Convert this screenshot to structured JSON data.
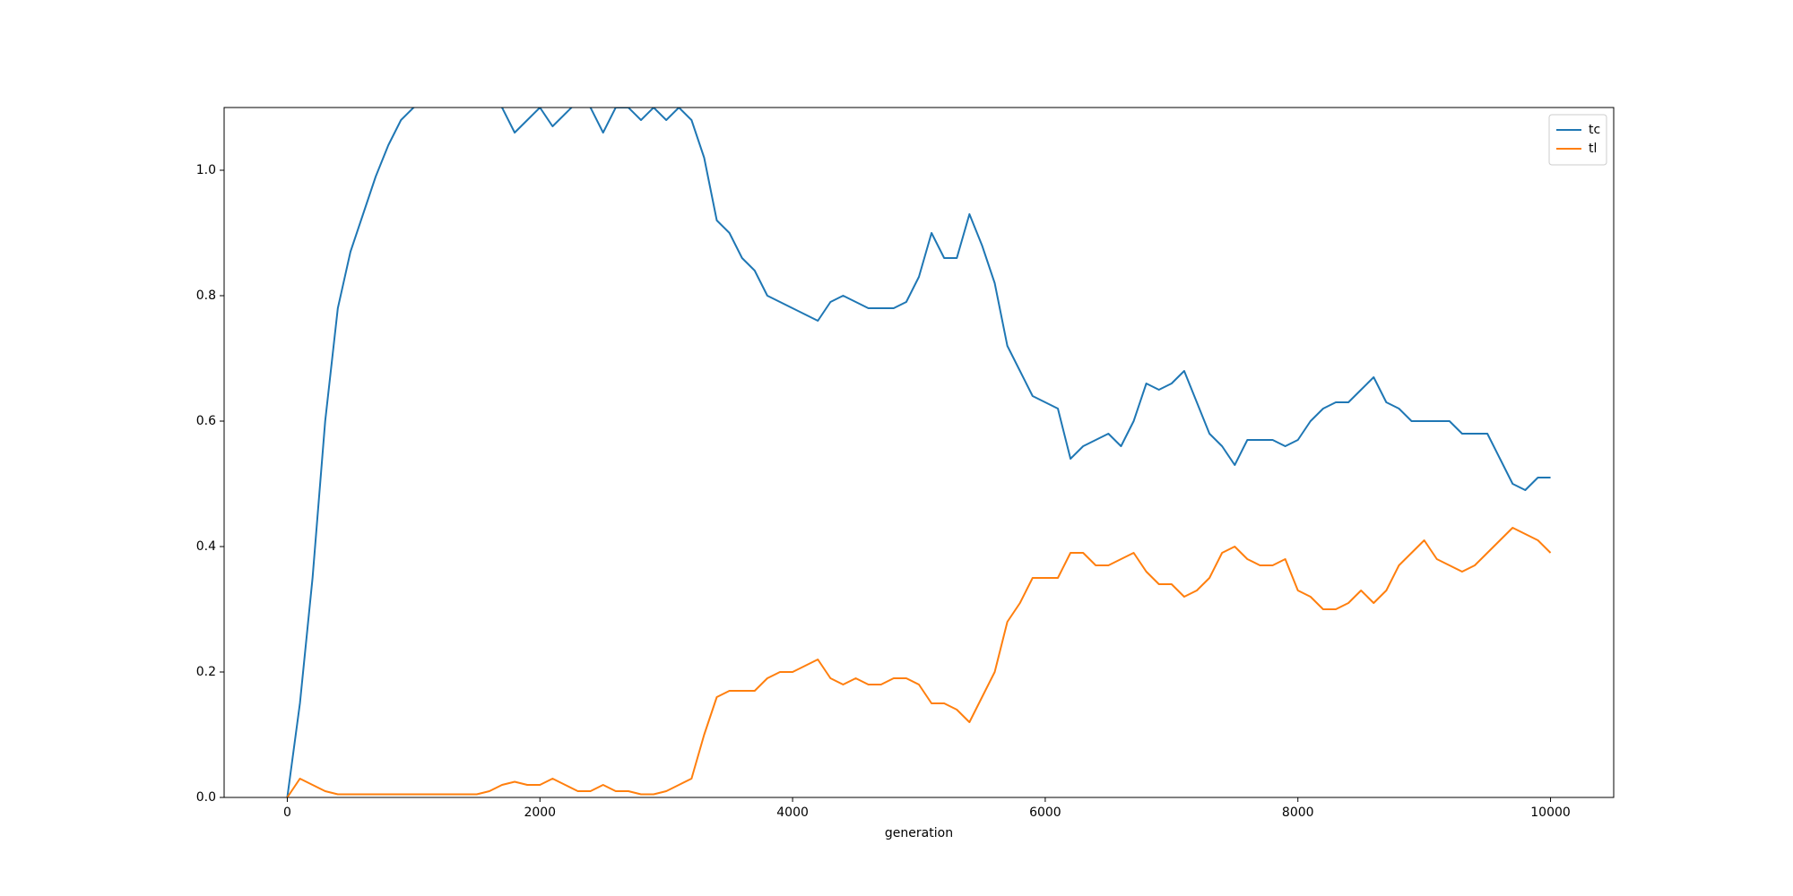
{
  "chart_data": {
    "type": "line",
    "xlabel": "generation",
    "x": [
      0,
      100,
      200,
      300,
      400,
      500,
      600,
      700,
      800,
      900,
      1000,
      1100,
      1200,
      1300,
      1400,
      1500,
      1600,
      1700,
      1800,
      1900,
      2000,
      2100,
      2200,
      2300,
      2400,
      2500,
      2600,
      2700,
      2800,
      2900,
      3000,
      3100,
      3200,
      3300,
      3400,
      3500,
      3600,
      3700,
      3800,
      3900,
      4000,
      4100,
      4200,
      4300,
      4400,
      4500,
      4600,
      4700,
      4800,
      4900,
      5000,
      5100,
      5200,
      5300,
      5400,
      5500,
      5600,
      5700,
      5800,
      5900,
      6000,
      6100,
      6200,
      6300,
      6400,
      6500,
      6600,
      6700,
      6800,
      6900,
      7000,
      7100,
      7200,
      7300,
      7400,
      7500,
      7600,
      7700,
      7800,
      7900,
      8000,
      8100,
      8200,
      8300,
      8400,
      8500,
      8600,
      8700,
      8800,
      8900,
      9000,
      9100,
      9200,
      9300,
      9400,
      9500,
      9600,
      9700,
      9800,
      9900,
      10000
    ],
    "series": [
      {
        "name": "tc",
        "color": "#1f77b4",
        "values": [
          0,
          0.15,
          0.35,
          0.6,
          0.78,
          0.87,
          0.93,
          0.99,
          1.04,
          1.08,
          1.1,
          1.11,
          1.12,
          1.13,
          1.12,
          1.12,
          1.11,
          1.1,
          1.06,
          1.08,
          1.1,
          1.07,
          1.09,
          1.11,
          1.1,
          1.06,
          1.1,
          1.1,
          1.08,
          1.1,
          1.08,
          1.1,
          1.08,
          1.02,
          0.92,
          0.9,
          0.86,
          0.84,
          0.8,
          0.79,
          0.78,
          0.77,
          0.76,
          0.79,
          0.8,
          0.79,
          0.78,
          0.78,
          0.78,
          0.79,
          0.83,
          0.9,
          0.86,
          0.86,
          0.93,
          0.88,
          0.82,
          0.72,
          0.68,
          0.64,
          0.63,
          0.62,
          0.54,
          0.56,
          0.57,
          0.58,
          0.56,
          0.6,
          0.66,
          0.65,
          0.66,
          0.68,
          0.63,
          0.58,
          0.56,
          0.53,
          0.57,
          0.57,
          0.57,
          0.56,
          0.57,
          0.6,
          0.62,
          0.63,
          0.63,
          0.65,
          0.67,
          0.63,
          0.62,
          0.6,
          0.6,
          0.6,
          0.6,
          0.58,
          0.58,
          0.58,
          0.54,
          0.5,
          0.49,
          0.51,
          0.51
        ]
      },
      {
        "name": "tl",
        "color": "#ff7f0e",
        "values": [
          0,
          0.03,
          0.02,
          0.01,
          0.005,
          0.005,
          0.005,
          0.005,
          0.005,
          0.005,
          0.005,
          0.005,
          0.005,
          0.005,
          0.005,
          0.005,
          0.01,
          0.02,
          0.025,
          0.02,
          0.02,
          0.03,
          0.02,
          0.01,
          0.01,
          0.02,
          0.01,
          0.01,
          0.005,
          0.005,
          0.01,
          0.02,
          0.03,
          0.1,
          0.16,
          0.17,
          0.17,
          0.17,
          0.19,
          0.2,
          0.2,
          0.21,
          0.22,
          0.19,
          0.18,
          0.19,
          0.18,
          0.18,
          0.19,
          0.19,
          0.18,
          0.15,
          0.15,
          0.14,
          0.12,
          0.16,
          0.2,
          0.28,
          0.31,
          0.35,
          0.35,
          0.35,
          0.39,
          0.39,
          0.37,
          0.37,
          0.38,
          0.39,
          0.36,
          0.34,
          0.34,
          0.32,
          0.33,
          0.35,
          0.39,
          0.4,
          0.38,
          0.37,
          0.37,
          0.38,
          0.33,
          0.32,
          0.3,
          0.3,
          0.31,
          0.33,
          0.31,
          0.33,
          0.37,
          0.39,
          0.41,
          0.38,
          0.37,
          0.36,
          0.37,
          0.39,
          0.41,
          0.43,
          0.42,
          0.41,
          0.39
        ]
      }
    ],
    "xlim": [
      -500,
      10500
    ],
    "xticks": [
      0,
      2000,
      4000,
      6000,
      8000,
      10000
    ],
    "ylim": [
      0,
      1.1
    ],
    "yticks": [
      {
        "value": 0,
        "label": "0.0"
      },
      0.2,
      0.4,
      0.6,
      0.8,
      {
        "value": 1,
        "label": "1.0"
      }
    ],
    "legend": "upper right",
    "grid": false
  }
}
